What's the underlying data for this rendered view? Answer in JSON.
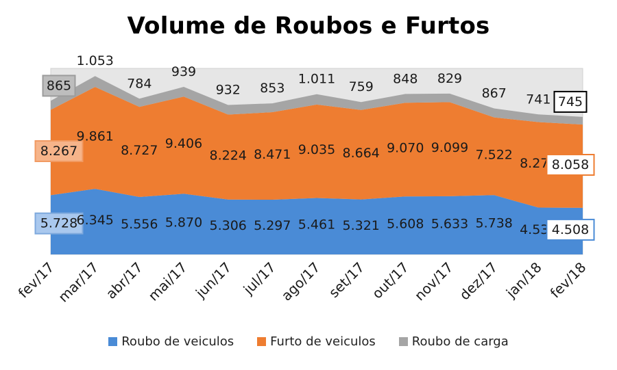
{
  "title": "Volume de Roubos e Furtos",
  "colors": {
    "roubo_veiculos": "#4a8bd6",
    "furto_veiculos": "#ee7d31",
    "roubo_carga": "#a5a5a5",
    "plot_bg": "#e6e6e6"
  },
  "chart_data": {
    "type": "area",
    "stacked": true,
    "title": "Volume de Roubos e Furtos",
    "categories": [
      "fev/17",
      "mar/17",
      "abr/17",
      "mai/17",
      "jun/17",
      "jul/17",
      "ago/17",
      "set/17",
      "out/17",
      "nov/17",
      "dez/17",
      "jan/18",
      "fev/18"
    ],
    "series": [
      {
        "name": "Roubo de veiculos",
        "color": "#4a8bd6",
        "values": [
          5728,
          6345,
          5556,
          5870,
          5306,
          5297,
          5461,
          5321,
          5608,
          5633,
          5738,
          4530,
          4508
        ],
        "labels": [
          "5.728",
          "6.345",
          "5.556",
          "5.870",
          "5.306",
          "5.297",
          "5.461",
          "5.321",
          "5.608",
          "5.633",
          "5.738",
          "4.530",
          "4.508"
        ]
      },
      {
        "name": "Furto de veiculos",
        "color": "#ee7d31",
        "values": [
          8267,
          9861,
          8727,
          9406,
          8224,
          8471,
          9035,
          8664,
          9070,
          9099,
          7522,
          8278,
          8058
        ],
        "labels": [
          "8.267",
          "9.861",
          "8.727",
          "9.406",
          "8.224",
          "8.471",
          "9.035",
          "8.664",
          "9.070",
          "9.099",
          "7.522",
          "8.278",
          "8.058"
        ]
      },
      {
        "name": "Roubo de carga",
        "color": "#a5a5a5",
        "values": [
          865,
          1053,
          784,
          939,
          932,
          853,
          1011,
          759,
          848,
          829,
          867,
          741,
          745
        ],
        "labels": [
          "865",
          "1.053",
          "784",
          "939",
          "932",
          "853",
          "1.011",
          "759",
          "848",
          "829",
          "867",
          "741",
          "745"
        ]
      }
    ],
    "ylim": [
      0,
      18000
    ],
    "grid": false,
    "legend_position": "bottom"
  }
}
